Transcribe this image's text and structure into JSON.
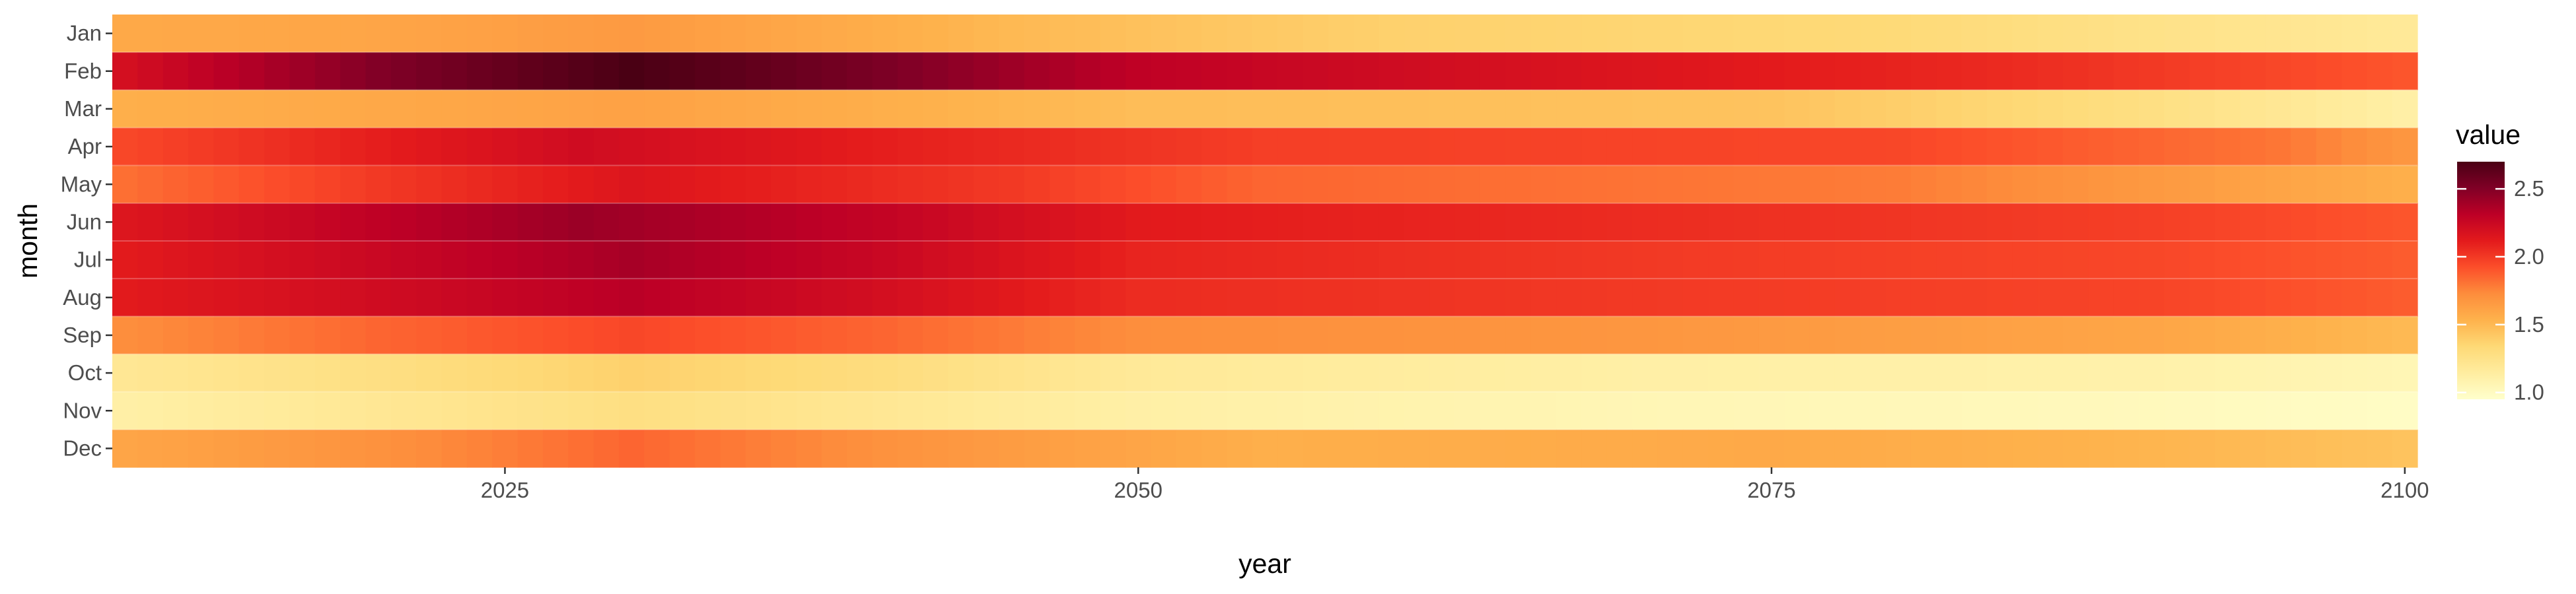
{
  "chart_data": {
    "type": "heatmap",
    "title": "",
    "xlabel": "year",
    "ylabel": "month",
    "x_range": [
      2010,
      2100
    ],
    "x_ticks": [
      2025,
      2050,
      2075,
      2100
    ],
    "months": [
      "Jan",
      "Feb",
      "Mar",
      "Apr",
      "May",
      "Jun",
      "Jul",
      "Aug",
      "Sep",
      "Oct",
      "Nov",
      "Dec"
    ],
    "value_profiles": [
      {
        "month": "Jan",
        "values_by_year": [
          [
            2010,
            1.58
          ],
          [
            2020,
            1.6
          ],
          [
            2030,
            1.66
          ],
          [
            2045,
            1.5
          ],
          [
            2060,
            1.38
          ],
          [
            2080,
            1.33
          ],
          [
            2100,
            1.18
          ]
        ]
      },
      {
        "month": "Feb",
        "values_by_year": [
          [
            2010,
            2.2
          ],
          [
            2020,
            2.5
          ],
          [
            2030,
            2.7
          ],
          [
            2040,
            2.52
          ],
          [
            2050,
            2.3
          ],
          [
            2070,
            2.15
          ],
          [
            2085,
            2.05
          ],
          [
            2100,
            1.9
          ]
        ]
      },
      {
        "month": "Mar",
        "values_by_year": [
          [
            2010,
            1.55
          ],
          [
            2025,
            1.6
          ],
          [
            2030,
            1.62
          ],
          [
            2050,
            1.48
          ],
          [
            2075,
            1.45
          ],
          [
            2090,
            1.28
          ],
          [
            2100,
            1.12
          ]
        ]
      },
      {
        "month": "Apr",
        "values_by_year": [
          [
            2010,
            1.95
          ],
          [
            2020,
            2.1
          ],
          [
            2028,
            2.22
          ],
          [
            2040,
            2.1
          ],
          [
            2055,
            1.98
          ],
          [
            2080,
            1.95
          ],
          [
            2095,
            1.8
          ],
          [
            2100,
            1.68
          ]
        ]
      },
      {
        "month": "May",
        "values_by_year": [
          [
            2010,
            1.82
          ],
          [
            2020,
            2.0
          ],
          [
            2030,
            2.15
          ],
          [
            2045,
            2.0
          ],
          [
            2055,
            1.85
          ],
          [
            2080,
            1.78
          ],
          [
            2100,
            1.55
          ]
        ]
      },
      {
        "month": "Jun",
        "values_by_year": [
          [
            2010,
            2.15
          ],
          [
            2020,
            2.3
          ],
          [
            2028,
            2.42
          ],
          [
            2040,
            2.28
          ],
          [
            2050,
            2.12
          ],
          [
            2070,
            2.05
          ],
          [
            2090,
            1.98
          ],
          [
            2100,
            1.9
          ]
        ]
      },
      {
        "month": "Jul",
        "values_by_year": [
          [
            2010,
            2.12
          ],
          [
            2020,
            2.25
          ],
          [
            2030,
            2.38
          ],
          [
            2040,
            2.25
          ],
          [
            2050,
            2.08
          ],
          [
            2070,
            2.0
          ],
          [
            2090,
            1.95
          ],
          [
            2100,
            1.88
          ]
        ]
      },
      {
        "month": "Aug",
        "values_by_year": [
          [
            2010,
            2.12
          ],
          [
            2020,
            2.22
          ],
          [
            2030,
            2.32
          ],
          [
            2040,
            2.2
          ],
          [
            2050,
            2.05
          ],
          [
            2070,
            2.0
          ],
          [
            2090,
            1.96
          ],
          [
            2100,
            1.88
          ]
        ]
      },
      {
        "month": "Sep",
        "values_by_year": [
          [
            2010,
            1.72
          ],
          [
            2020,
            1.85
          ],
          [
            2030,
            1.95
          ],
          [
            2040,
            1.85
          ],
          [
            2050,
            1.72
          ],
          [
            2070,
            1.68
          ],
          [
            2090,
            1.6
          ],
          [
            2100,
            1.5
          ]
        ]
      },
      {
        "month": "Oct",
        "values_by_year": [
          [
            2010,
            1.2
          ],
          [
            2020,
            1.28
          ],
          [
            2030,
            1.38
          ],
          [
            2040,
            1.3
          ],
          [
            2050,
            1.18
          ],
          [
            2070,
            1.12
          ],
          [
            2090,
            1.1
          ],
          [
            2100,
            1.05
          ]
        ]
      },
      {
        "month": "Nov",
        "values_by_year": [
          [
            2010,
            1.12
          ],
          [
            2020,
            1.2
          ],
          [
            2030,
            1.28
          ],
          [
            2040,
            1.2
          ],
          [
            2050,
            1.12
          ],
          [
            2070,
            1.05
          ],
          [
            2090,
            1.02
          ],
          [
            2100,
            0.98
          ]
        ]
      },
      {
        "month": "Dec",
        "values_by_year": [
          [
            2010,
            1.6
          ],
          [
            2020,
            1.7
          ],
          [
            2030,
            1.85
          ],
          [
            2040,
            1.7
          ],
          [
            2055,
            1.55
          ],
          [
            2075,
            1.58
          ],
          [
            2090,
            1.52
          ],
          [
            2100,
            1.45
          ]
        ]
      }
    ],
    "color_scale": {
      "name": "YlOrRd",
      "domain": [
        0.95,
        2.7
      ],
      "stops": [
        "#ffffcc",
        "#ffeda0",
        "#fed976",
        "#feb24c",
        "#fd8d3c",
        "#fc4e2a",
        "#e31a1c",
        "#bd0026",
        "#800026",
        "#4a0014"
      ]
    },
    "legend": {
      "title": "value",
      "ticks": [
        "1.0",
        "1.5",
        "2.0",
        "2.5"
      ],
      "position": "right"
    },
    "grid": true
  }
}
